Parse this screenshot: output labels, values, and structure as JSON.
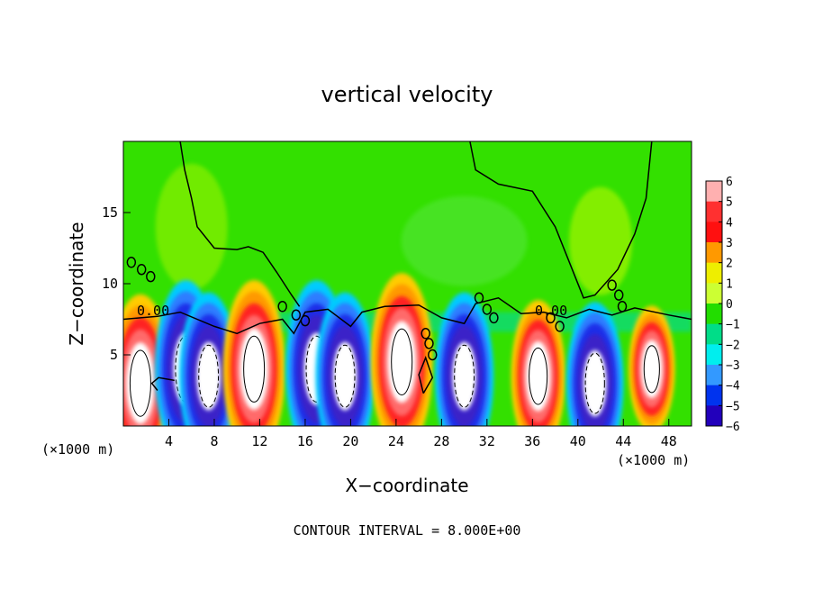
{
  "chart_data": {
    "type": "heatmap",
    "title": "vertical velocity",
    "xlabel": "X−coordinate",
    "ylabel": "Z−coordinate",
    "x_unit_left": "(×1000 m)",
    "x_unit_right": "(×1000 m)",
    "xlim": [
      0,
      50
    ],
    "ylim": [
      0,
      20
    ],
    "x_ticks": [
      4,
      8,
      12,
      16,
      20,
      24,
      28,
      32,
      36,
      40,
      44,
      48
    ],
    "y_ticks": [
      5,
      10,
      15
    ],
    "colorbar": {
      "levels": [
        6,
        5,
        4,
        3,
        2,
        1,
        0,
        -1,
        -2,
        -3,
        -4,
        -5,
        -6
      ],
      "labels": [
        "6",
        "5",
        "4",
        "3",
        "2",
        "1",
        "0",
        "−1",
        "−2",
        "−3",
        "−4",
        "−5",
        "−6"
      ],
      "colors": [
        "#ffb0b0",
        "#ff3030",
        "#ff1010",
        "#ff9900",
        "#eeee00",
        "#ccff33",
        "#22dd00",
        "#00dd88",
        "#00eeee",
        "#3399ff",
        "#0033ee",
        "#2200bb",
        "#8800bb"
      ]
    },
    "contour_label": "0.00",
    "footer": "CONTOUR INTERVAL = 8.000E+00",
    "cells": [
      {
        "x": 1.5,
        "z": 3.0,
        "w": 3.0
      },
      {
        "x": 5.5,
        "z": 4.0,
        "w": -3.0
      },
      {
        "x": 7.5,
        "z": 3.5,
        "w": -2.8
      },
      {
        "x": 11.5,
        "z": 4.0,
        "w": 3.0
      },
      {
        "x": 17.0,
        "z": 4.0,
        "w": -3.0
      },
      {
        "x": 19.5,
        "z": 3.5,
        "w": -2.8
      },
      {
        "x": 24.5,
        "z": 4.5,
        "w": 3.0
      },
      {
        "x": 30.0,
        "z": 3.5,
        "w": -2.8
      },
      {
        "x": 36.5,
        "z": 3.5,
        "w": 2.5
      },
      {
        "x": 41.5,
        "z": 3.0,
        "w": -2.7
      },
      {
        "x": 46.5,
        "z": 4.0,
        "w": 2.0
      }
    ]
  }
}
